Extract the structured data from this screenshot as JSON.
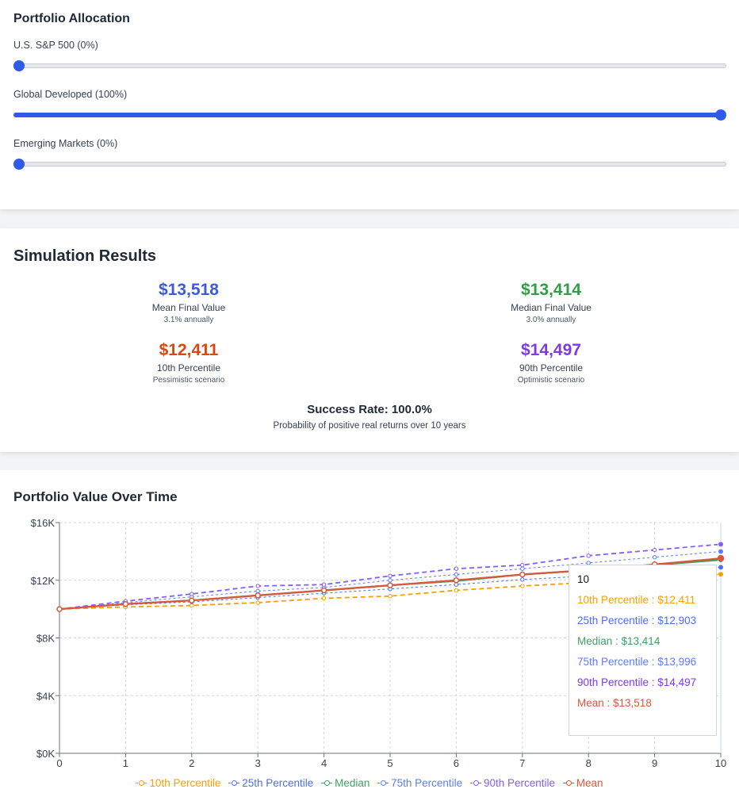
{
  "allocation": {
    "title": "Portfolio Allocation",
    "sliders": [
      {
        "label": "U.S. S&P 500 (0%)",
        "value": 0
      },
      {
        "label": "Global Developed (100%)",
        "value": 100
      },
      {
        "label": "Emerging Markets (0%)",
        "value": 0
      }
    ],
    "accent_color": "#2f5be8"
  },
  "results": {
    "title": "Simulation Results",
    "mean": {
      "value": "$13,518",
      "label": "Mean Final Value",
      "sub": "3.1% annually",
      "color": "#3b5bdb"
    },
    "median": {
      "value": "$13,414",
      "label": "Median Final Value",
      "sub": "3.0% annually",
      "color": "#2f9e44"
    },
    "p10": {
      "value": "$12,411",
      "label": "10th Percentile",
      "sub": "Pessimistic scenario",
      "color": "#d9480f"
    },
    "p90": {
      "value": "$14,497",
      "label": "90th Percentile",
      "sub": "Optimistic scenario",
      "color": "#7e3ae0"
    },
    "success": {
      "value": "Success Rate: 100.0%",
      "sub": "Probability of positive real returns over 10 years"
    }
  },
  "chart": {
    "title": "Portfolio Value Over Time"
  },
  "chart_data": {
    "type": "line",
    "x": [
      0,
      1,
      2,
      3,
      4,
      5,
      6,
      7,
      8,
      9,
      10
    ],
    "xlim": [
      0,
      10
    ],
    "ylim": [
      0,
      16000
    ],
    "yticks": [
      0,
      4000,
      8000,
      12000,
      16000
    ],
    "ytick_labels": [
      "$0K",
      "$4K",
      "$8K",
      "$12K",
      "$16K"
    ],
    "grid": true,
    "legend_position": "bottom",
    "series": [
      {
        "name": "10th Percentile",
        "color": "#f59f00",
        "style": "dashed",
        "values": [
          10000,
          10150,
          10250,
          10450,
          10750,
          10900,
          11300,
          11600,
          11850,
          12150,
          12411
        ]
      },
      {
        "name": "25th Percentile",
        "color": "#4c6ef5",
        "style": "dashed-thin",
        "values": [
          10000,
          10300,
          10500,
          10800,
          11100,
          11400,
          11700,
          12050,
          12300,
          12600,
          12903
        ]
      },
      {
        "name": "Median",
        "color": "#40a065",
        "style": "solid",
        "values": [
          10000,
          10350,
          10600,
          10950,
          11300,
          11650,
          11950,
          12400,
          12700,
          13050,
          13414
        ]
      },
      {
        "name": "75th Percentile",
        "color": "#5c7cfa",
        "style": "dashed-thin",
        "values": [
          10000,
          10450,
          10850,
          11250,
          11500,
          12000,
          12400,
          12800,
          13200,
          13600,
          13996
        ]
      },
      {
        "name": "90th Percentile",
        "color": "#845ef7",
        "style": "dashed",
        "values": [
          10000,
          10550,
          11050,
          11600,
          11700,
          12300,
          12800,
          13050,
          13700,
          14100,
          14497
        ]
      },
      {
        "name": "Mean",
        "color": "#d9573b",
        "style": "solid",
        "values": [
          10000,
          10350,
          10600,
          10950,
          11300,
          11650,
          12000,
          12400,
          12700,
          13100,
          13518
        ]
      }
    ],
    "tooltip": {
      "label": "10",
      "rows": [
        {
          "text": "10th Percentile : $12,411",
          "color": "#f59f00"
        },
        {
          "text": "25th Percentile : $12,903",
          "color": "#4c6ef5"
        },
        {
          "text": "Median : $13,414",
          "color": "#40a065"
        },
        {
          "text": "75th Percentile : $13,996",
          "color": "#5c7cfa"
        },
        {
          "text": "90th Percentile : $14,497",
          "color": "#7e3ae0"
        },
        {
          "text": "Mean : $13,518",
          "color": "#d9573b"
        }
      ]
    }
  }
}
